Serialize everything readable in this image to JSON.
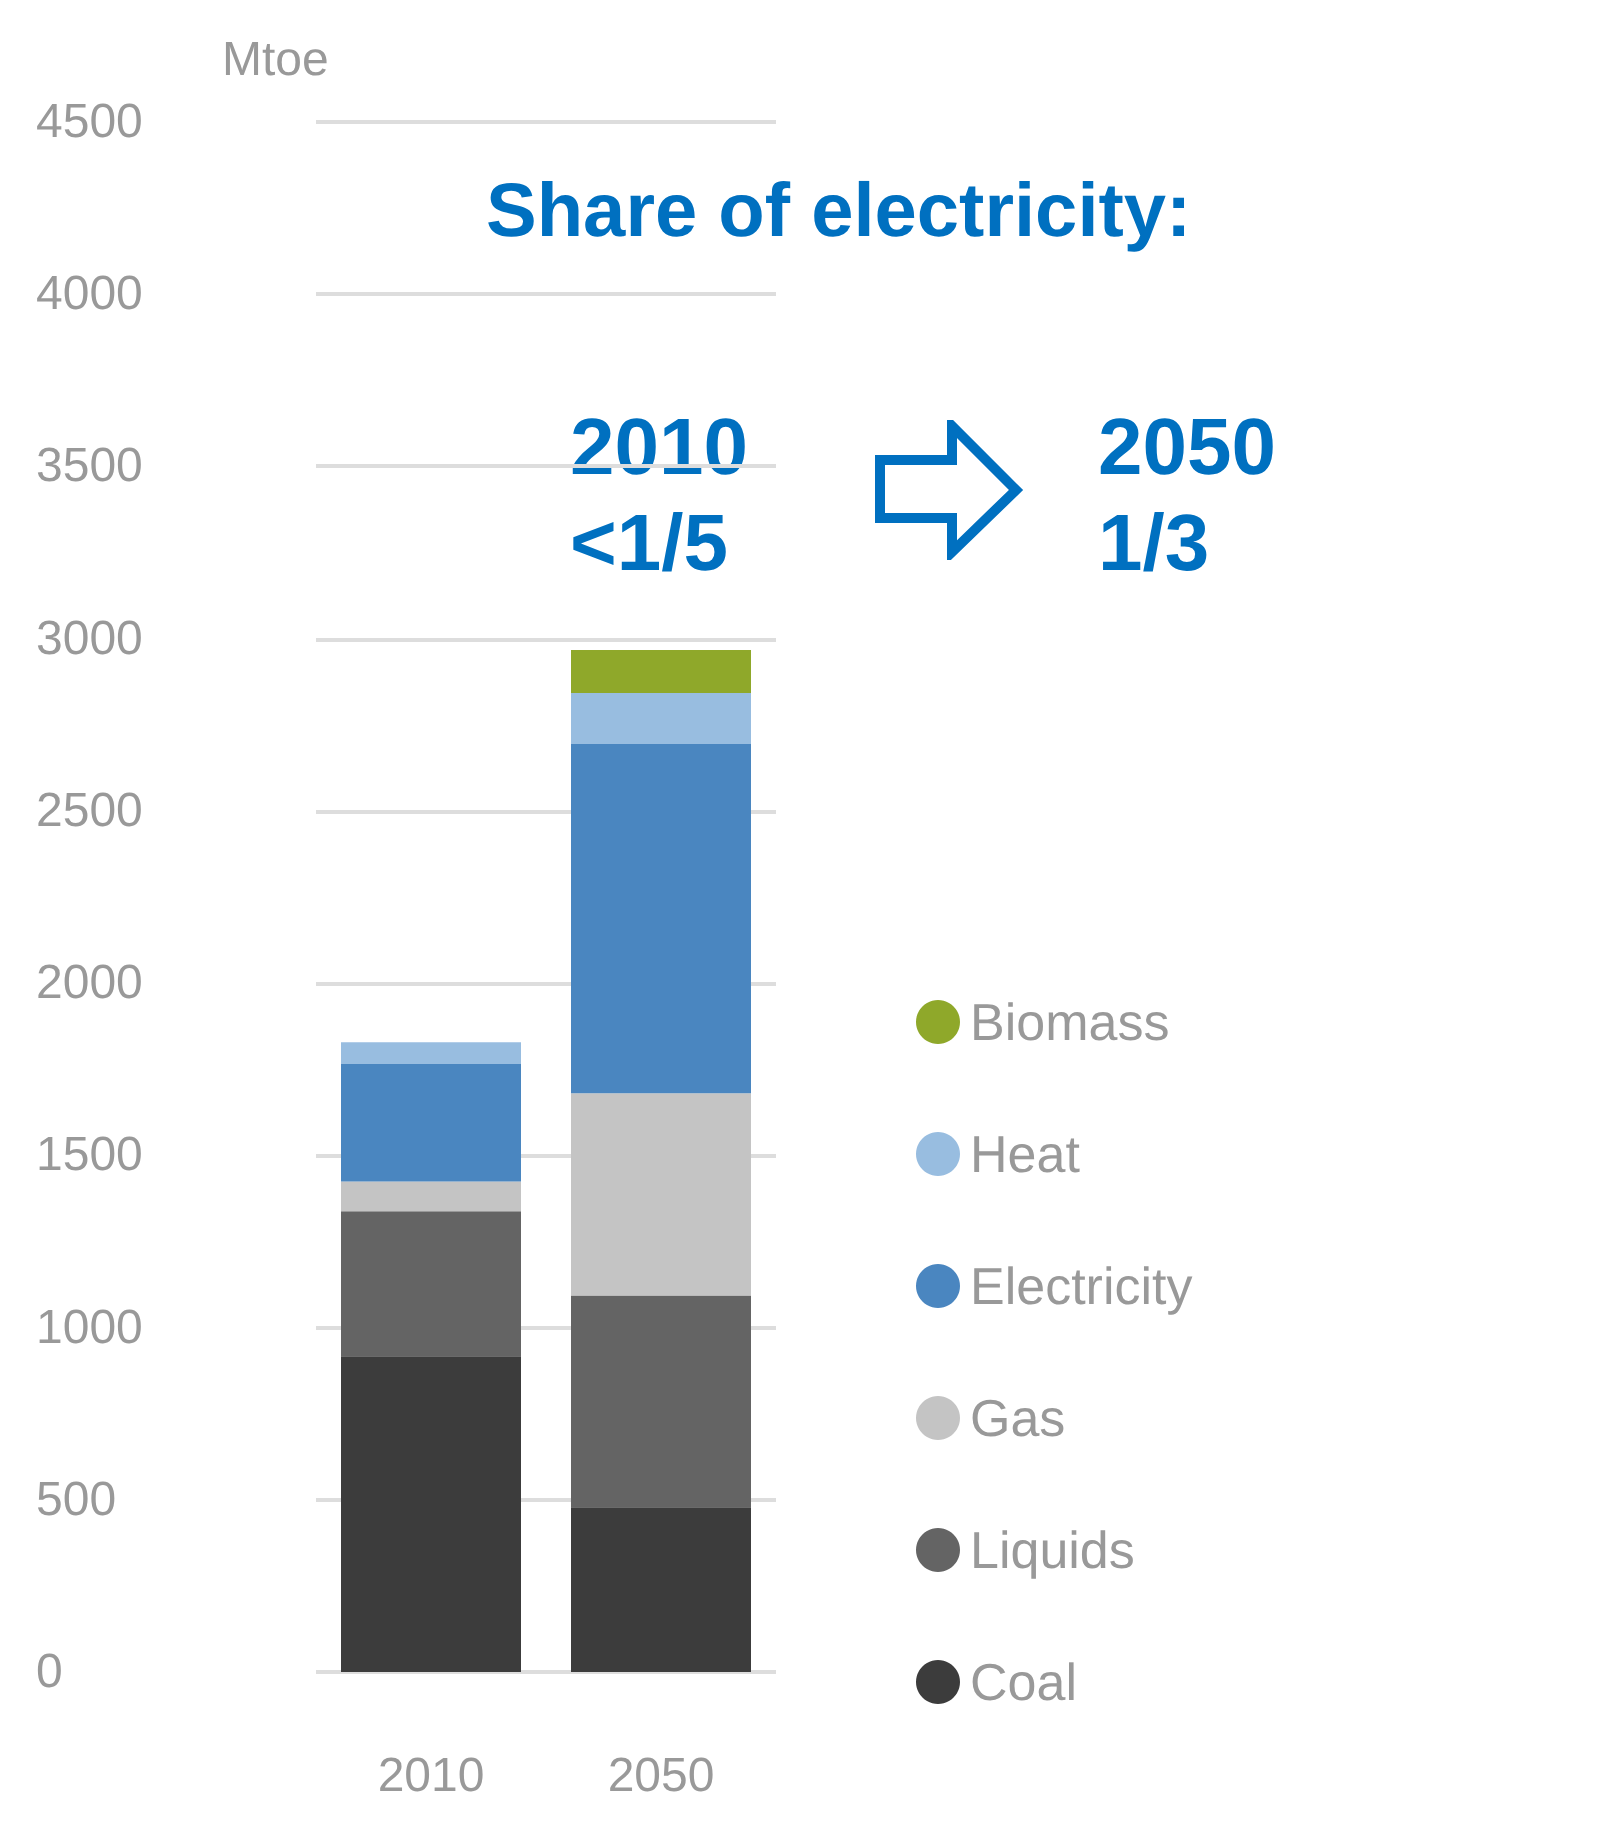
{
  "chart_data": {
    "type": "bar",
    "stacked": true,
    "ylabel": "Mtoe",
    "categories": [
      "2010",
      "2050"
    ],
    "series": [
      {
        "name": "Coal",
        "color": "#3c3c3c",
        "values": [
          917,
          478
        ]
      },
      {
        "name": "Liquids",
        "color": "#646464",
        "values": [
          421,
          615
        ]
      },
      {
        "name": "Gas",
        "color": "#c4c4c4",
        "values": [
          86,
          587
        ]
      },
      {
        "name": "Electricity",
        "color": "#4a86c0",
        "values": [
          341,
          1014
        ]
      },
      {
        "name": "Heat",
        "color": "#98bde0",
        "values": [
          63,
          148
        ]
      },
      {
        "name": "Biomass",
        "color": "#8fa82a",
        "values": [
          0,
          125
        ]
      }
    ],
    "ylim": [
      0,
      4500
    ],
    "yticks": [
      0,
      500,
      1000,
      1500,
      2000,
      2500,
      3000,
      3500,
      4000,
      4500
    ],
    "grid": "y",
    "legend": "right",
    "annotations": [
      "Share of electricity:",
      "2010\n<1/5",
      "2050\n1/3"
    ]
  }
}
